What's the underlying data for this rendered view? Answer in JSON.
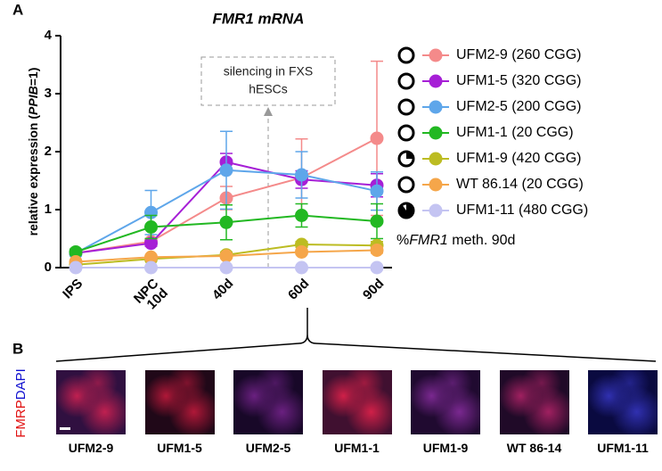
{
  "panel_a": "A",
  "panel_b": "B",
  "chart_data": {
    "type": "line",
    "title": "FMR1 mRNA",
    "ylabel": [
      "relative expression (",
      "PPIB",
      "=1)"
    ],
    "categories": [
      "IPS",
      "NPC\n10d",
      "40d",
      "60d",
      "90d"
    ],
    "ylim": [
      0,
      4
    ],
    "yticks": [
      0,
      1,
      2,
      3,
      4
    ],
    "series": [
      {
        "name": "UFM2-9 (260 CGG)",
        "color": "#f48a8a",
        "meth": 0,
        "values": [
          0.25,
          0.45,
          1.2,
          1.55,
          2.23
        ],
        "errors": [
          0.03,
          0.05,
          0.2,
          0.67,
          1.33
        ]
      },
      {
        "name": "UFM1-5 (320 CGG)",
        "color": "#a61fd6",
        "meth": 0,
        "values": [
          0.25,
          0.42,
          1.82,
          1.52,
          1.42
        ],
        "errors": [
          0.03,
          0.05,
          0.15,
          0.15,
          0.2
        ]
      },
      {
        "name": "UFM2-5 (200 CGG)",
        "color": "#5ea6ea",
        "meth": 0,
        "values": [
          0.25,
          0.95,
          1.68,
          1.6,
          1.32
        ],
        "errors": [
          0.05,
          0.38,
          0.67,
          0.4,
          0.33
        ]
      },
      {
        "name": "UFM1-1 (20 CGG)",
        "color": "#22b822",
        "meth": 0,
        "values": [
          0.27,
          0.7,
          0.78,
          0.9,
          0.8
        ],
        "errors": [
          0.05,
          0.2,
          0.3,
          0.2,
          0.3
        ]
      },
      {
        "name": "UFM1-9 (420 CGG)",
        "color": "#bcbc22",
        "meth": 25,
        "values": [
          0.05,
          0.15,
          0.22,
          0.4,
          0.38
        ],
        "errors": [
          0.02,
          0.04,
          0.05,
          0.05,
          0.07
        ]
      },
      {
        "name": "WT 86.14 (20 CGG)",
        "color": "#f5a64a",
        "meth": 0,
        "values": [
          0.1,
          0.18,
          0.2,
          0.27,
          0.3
        ],
        "errors": [
          0.02,
          0.03,
          0.04,
          0.04,
          0.05
        ]
      },
      {
        "name": "UFM1-11 (480 CGG)",
        "color": "#c4c4f2",
        "meth": 90,
        "values": [
          0,
          0,
          0,
          0,
          0
        ],
        "errors": [
          0,
          0,
          0,
          0,
          0
        ]
      }
    ],
    "annotation": [
      "silencing in FXS",
      "hESCs"
    ],
    "legend_note": [
      "%",
      "FMR1",
      " meth. 90d"
    ]
  },
  "images": {
    "stain_labels": [
      "FMRP",
      "DAPI"
    ],
    "labels": [
      "UFM2-9",
      "UFM1-5",
      "UFM2-5",
      "UFM1-1",
      "UFM1-9",
      "WT 86-14",
      "UFM1-11"
    ]
  }
}
